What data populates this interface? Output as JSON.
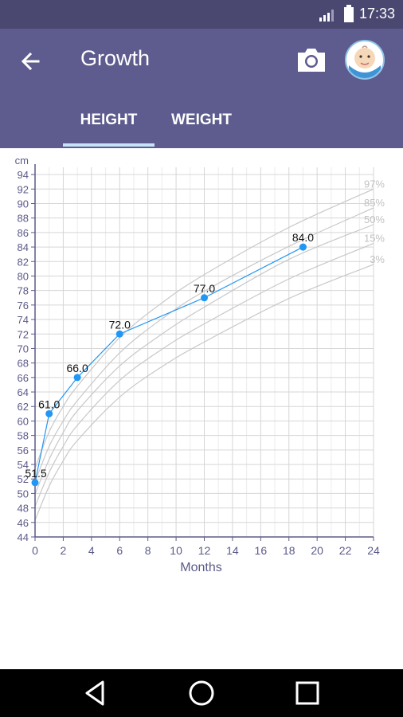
{
  "status_bar": {
    "time": "17:33"
  },
  "app_bar": {
    "title": "Growth"
  },
  "tabs": [
    {
      "label": "HEIGHT",
      "active": true
    },
    {
      "label": "WEIGHT",
      "active": false
    }
  ],
  "colors": {
    "primary": "#5e5c8e",
    "status_bar": "#4a4870",
    "accent": "#2196f3",
    "tab_indicator": "#c6e3f7",
    "percentile_curve": "#c8c8c8",
    "axis": "#5b5a8a"
  },
  "icons": {
    "back": "arrow-left-icon",
    "camera": "camera-icon",
    "avatar": "baby-avatar-icon",
    "nav_back": "triangle-back-icon",
    "nav_home": "circle-home-icon",
    "nav_recent": "square-recents-icon"
  },
  "chart_data": {
    "type": "line",
    "xlabel": "Months",
    "ylabel": "cm",
    "xlim": [
      0,
      24
    ],
    "ylim": [
      44,
      95
    ],
    "x_ticks": [
      0,
      2,
      4,
      6,
      8,
      10,
      12,
      14,
      16,
      18,
      20,
      22,
      24
    ],
    "y_ticks": [
      44,
      46,
      48,
      50,
      52,
      54,
      56,
      58,
      60,
      62,
      64,
      66,
      68,
      70,
      72,
      74,
      76,
      78,
      80,
      82,
      84,
      86,
      88,
      90,
      92,
      94
    ],
    "grid": true,
    "series": [
      {
        "x": [
          0,
          1,
          3,
          6,
          12,
          19
        ],
        "y": [
          51.5,
          61.0,
          66.0,
          72.0,
          77.0,
          84.0
        ],
        "point_labels": [
          "51.5",
          "61.0",
          "66.0",
          "72.0",
          "77.0",
          "84.0"
        ]
      }
    ],
    "percentiles": [
      {
        "name": "97%",
        "x": [
          0,
          1,
          2,
          3,
          6,
          9,
          12,
          18,
          24
        ],
        "y": [
          53.5,
          58.5,
          62,
          64.8,
          71.5,
          76.3,
          80.2,
          86.7,
          92.0
        ]
      },
      {
        "name": "85%",
        "x": [
          0,
          1,
          2,
          3,
          6,
          9,
          12,
          18,
          24
        ],
        "y": [
          51.6,
          56.5,
          60.0,
          62.8,
          69.4,
          74.1,
          77.9,
          84.1,
          89.4
        ]
      },
      {
        "name": "50%",
        "x": [
          0,
          1,
          2,
          3,
          6,
          9,
          12,
          18,
          24
        ],
        "y": [
          49.9,
          54.7,
          58.4,
          61.4,
          67.6,
          72.0,
          75.7,
          82.3,
          87.1
        ]
      },
      {
        "name": "15%",
        "x": [
          0,
          1,
          2,
          3,
          6,
          9,
          12,
          18,
          24
        ],
        "y": [
          48.2,
          52.9,
          56.5,
          59.4,
          65.6,
          69.9,
          73.4,
          79.6,
          84.5
        ]
      },
      {
        "name": "3%",
        "x": [
          0,
          1,
          2,
          3,
          6,
          9,
          12,
          18,
          24
        ],
        "y": [
          46.3,
          51.0,
          54.5,
          57.3,
          63.3,
          67.5,
          70.9,
          76.9,
          81.6
        ]
      }
    ]
  }
}
